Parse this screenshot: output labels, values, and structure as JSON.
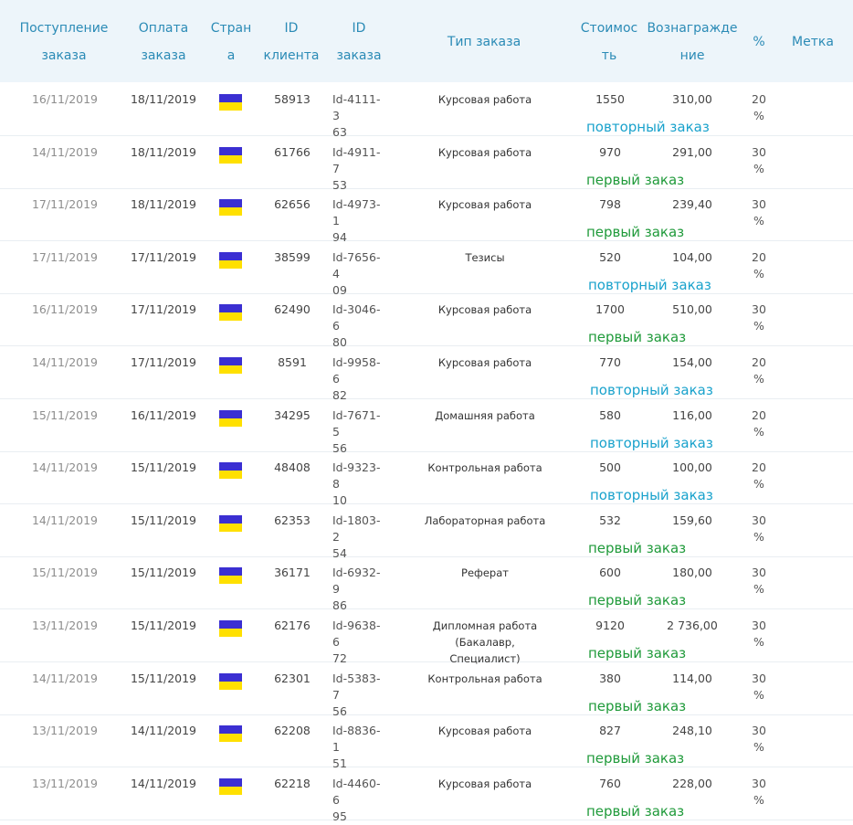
{
  "header": {
    "received": "Поступление\nзаказа",
    "paid": "Оплата\nзаказа",
    "country": "Стран\nа",
    "client_id": "ID\nклиента",
    "order_id": "ID\nзаказа",
    "order_type": "Тип заказа",
    "cost": "Стоимос\nть",
    "reward": "Вознагражде\nние",
    "percent": "%",
    "tag": "Метка"
  },
  "colors": {
    "header_bg": "#edf5fa",
    "header_text": "#2b8bb6",
    "flag_blue": "#3b2fd2",
    "flag_yellow": "#ffe000",
    "note_repeat": "#19a2cc",
    "note_first": "#1f9a3a"
  },
  "rows": [
    {
      "received": "16/11/2019",
      "paid": "18/11/2019",
      "client_id": "58913",
      "order_id": "Id-4111-3\n63",
      "type": "Курсовая работа",
      "cost": "1550",
      "reward": "310,00",
      "pct": "20\n%",
      "note": "повторный заказ",
      "note_kind": "repeat"
    },
    {
      "received": "14/11/2019",
      "paid": "18/11/2019",
      "client_id": "61766",
      "order_id": "Id-4911-7\n53",
      "type": "Курсовая работа",
      "cost": "970",
      "reward": "291,00",
      "pct": "30\n%",
      "note": "первый заказ",
      "note_kind": "first"
    },
    {
      "received": "17/11/2019",
      "paid": "18/11/2019",
      "client_id": "62656",
      "order_id": "Id-4973-1\n94",
      "type": "Курсовая работа",
      "cost": "798",
      "reward": "239,40",
      "pct": "30\n%",
      "note": "первый заказ",
      "note_kind": "first"
    },
    {
      "received": "17/11/2019",
      "paid": "17/11/2019",
      "client_id": "38599",
      "order_id": "Id-7656-4\n09",
      "type": "Тезисы",
      "cost": "520",
      "reward": "104,00",
      "pct": "20\n%",
      "note": "повторный заказ",
      "note_kind": "repeat"
    },
    {
      "received": "16/11/2019",
      "paid": "17/11/2019",
      "client_id": "62490",
      "order_id": "Id-3046-6\n80",
      "type": "Курсовая работа",
      "cost": "1700",
      "reward": "510,00",
      "pct": "30\n%",
      "note": "первый заказ",
      "note_kind": "first"
    },
    {
      "received": "14/11/2019",
      "paid": "17/11/2019",
      "client_id": "8591",
      "order_id": "Id-9958-6\n82",
      "type": "Курсовая работа",
      "cost": "770",
      "reward": "154,00",
      "pct": "20\n%",
      "note": "повторный заказ",
      "note_kind": "repeat"
    },
    {
      "received": "15/11/2019",
      "paid": "16/11/2019",
      "client_id": "34295",
      "order_id": "Id-7671-5\n56",
      "type": "Домашняя работа",
      "cost": "580",
      "reward": "116,00",
      "pct": "20\n%",
      "note": "повторный заказ",
      "note_kind": "repeat"
    },
    {
      "received": "14/11/2019",
      "paid": "15/11/2019",
      "client_id": "48408",
      "order_id": "Id-9323-8\n10",
      "type": "Контрольная работа",
      "cost": "500",
      "reward": "100,00",
      "pct": "20\n%",
      "note": "повторный заказ",
      "note_kind": "repeat"
    },
    {
      "received": "14/11/2019",
      "paid": "15/11/2019",
      "client_id": "62353",
      "order_id": "Id-1803-2\n54",
      "type": "Лабораторная работа",
      "cost": "532",
      "reward": "159,60",
      "pct": "30\n%",
      "note": "первый заказ",
      "note_kind": "first"
    },
    {
      "received": "15/11/2019",
      "paid": "15/11/2019",
      "client_id": "36171",
      "order_id": "Id-6932-9\n86",
      "type": "Реферат",
      "cost": "600",
      "reward": "180,00",
      "pct": "30\n%",
      "note": "первый заказ",
      "note_kind": "first"
    },
    {
      "received": "13/11/2019",
      "paid": "15/11/2019",
      "client_id": "62176",
      "order_id": "Id-9638-6\n72",
      "type": "Дипломная работа (Бакалавр,\nСпециалист)",
      "cost": "9120",
      "reward": "2 736,00",
      "pct": "30\n%",
      "note": "первый заказ",
      "note_kind": "first"
    },
    {
      "received": "14/11/2019",
      "paid": "15/11/2019",
      "client_id": "62301",
      "order_id": "Id-5383-7\n56",
      "type": "Контрольная работа",
      "cost": "380",
      "reward": "114,00",
      "pct": "30\n%",
      "note": "первый заказ",
      "note_kind": "first"
    },
    {
      "received": "13/11/2019",
      "paid": "14/11/2019",
      "client_id": "62208",
      "order_id": "Id-8836-1\n51",
      "type": "Курсовая работа",
      "cost": "827",
      "reward": "248,10",
      "pct": "30\n%",
      "note": "первый заказ",
      "note_kind": "first"
    },
    {
      "received": "13/11/2019",
      "paid": "14/11/2019",
      "client_id": "62218",
      "order_id": "Id-4460-6\n95",
      "type": "Курсовая работа",
      "cost": "760",
      "reward": "228,00",
      "pct": "30\n%",
      "note": "первый заказ",
      "note_kind": "first"
    }
  ]
}
